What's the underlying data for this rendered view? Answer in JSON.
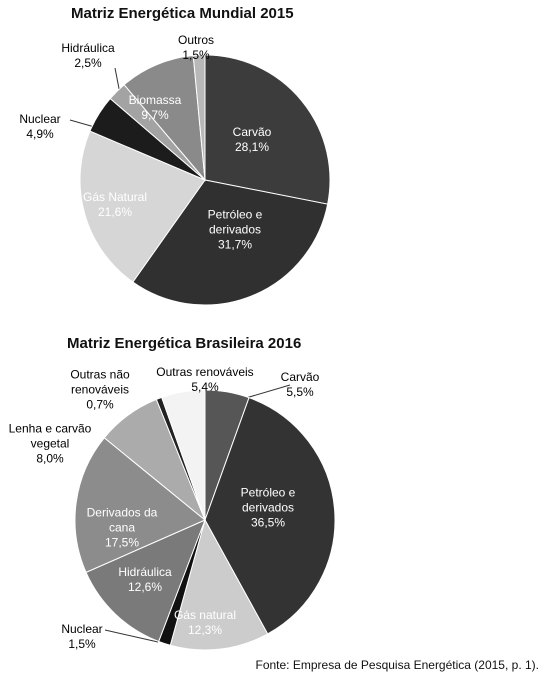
{
  "chart_data": [
    {
      "type": "pie",
      "title": "Matriz Energética Mundial 2015",
      "categories": [
        "Carvão",
        "Petróleo e derivados",
        "Gás Natural",
        "Nuclear",
        "Hidráulica",
        "Biomassa",
        "Outros"
      ],
      "values": [
        28.1,
        31.7,
        21.6,
        4.9,
        2.5,
        9.7,
        1.5
      ],
      "value_labels": [
        "28,1%",
        "31,7%",
        "21,6%",
        "4,9%",
        "2,5%",
        "9,7%",
        "1,5%"
      ],
      "colors": [
        "#3c3c3c",
        "#303030",
        "#d6d6d6",
        "#1c1c1c",
        "#a3a3a3",
        "#8a8a8a",
        "#b8b8b8"
      ]
    },
    {
      "type": "pie",
      "title": "Matriz Energética Brasileira 2016",
      "categories": [
        "Carvão",
        "Petróleo e derivados",
        "Gás natural",
        "Nuclear",
        "Hidráulica",
        "Derivados da cana",
        "Lenha e carvão vegetal",
        "Outras não renováveis",
        "Outras renováveis"
      ],
      "values": [
        5.5,
        36.5,
        12.3,
        1.5,
        12.6,
        17.5,
        8.0,
        0.7,
        5.4
      ],
      "value_labels": [
        "5,5%",
        "36,5%",
        "12,3%",
        "1,5%",
        "12,6%",
        "17,5%",
        "8,0%",
        "0,7%",
        "5,4%"
      ],
      "colors": [
        "#565656",
        "#333333",
        "#cccccc",
        "#111111",
        "#7a7a7a",
        "#8c8c8c",
        "#ababab",
        "#222222",
        "#f3f3f3"
      ]
    }
  ],
  "source": "Fonte: Empresa de Pesquisa Energética (2015, p. 1)."
}
